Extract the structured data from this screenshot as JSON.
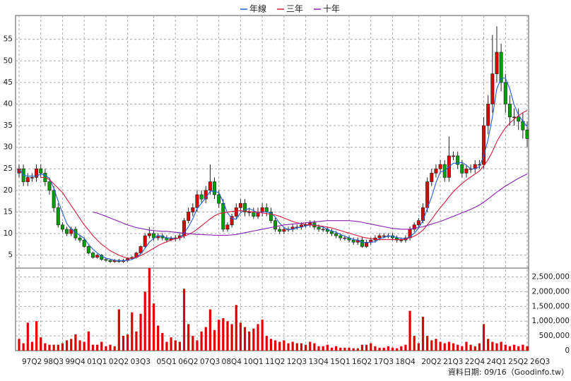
{
  "chart_data": [
    {
      "type": "candlestick",
      "categories": [
        "97Q2",
        null,
        null,
        null,
        null,
        "98Q3",
        null,
        null,
        null,
        null,
        "99Q4",
        null,
        null,
        null,
        null,
        "01Q1",
        null,
        null,
        null,
        null,
        "02Q2",
        null,
        null,
        null,
        null,
        "03Q3",
        null,
        null,
        null,
        null,
        null,
        "05Q1",
        null,
        null,
        null,
        null,
        "06Q2",
        null,
        null,
        null,
        null,
        "07Q3",
        null,
        null,
        null,
        null,
        "08Q4",
        null,
        null,
        null,
        null,
        "10Q1",
        null,
        null,
        null,
        null,
        "11Q2",
        null,
        null,
        null,
        null,
        "12Q3",
        null,
        null,
        null,
        null,
        "13Q4",
        null,
        null,
        null,
        null,
        "15Q1",
        null,
        null,
        null,
        null,
        "16Q2",
        null,
        null,
        null,
        null,
        "17Q3",
        null,
        null,
        null,
        null,
        "18Q4",
        null,
        null,
        null,
        null,
        null,
        "20Q2",
        null,
        null,
        null,
        null,
        "21Q3",
        null,
        null,
        null,
        null,
        "22Q4",
        null,
        null,
        null,
        null,
        "24Q1",
        null,
        null,
        null,
        null,
        "25Q2",
        null,
        null,
        null,
        null,
        "26Q3"
      ],
      "open": [
        24,
        25,
        22,
        23,
        23,
        25,
        24,
        22,
        20,
        16,
        12,
        11,
        10,
        11,
        9,
        8.5,
        7,
        5.5,
        4.5,
        5,
        4,
        3.8,
        3.5,
        3.8,
        3.5,
        3.8,
        4.2,
        4.5,
        5.5,
        7,
        9.5,
        10,
        9,
        9.5,
        9,
        8.5,
        8.8,
        9,
        9.5,
        13,
        15,
        16,
        19,
        18,
        20,
        22,
        19,
        17,
        11,
        12,
        14,
        16,
        17,
        15,
        15,
        14,
        15,
        16,
        15,
        13,
        11,
        10.5,
        11,
        11,
        11.5,
        11.5,
        12,
        12,
        12.5,
        11.5,
        11,
        11,
        10.5,
        10,
        9.5,
        9,
        9,
        8.5,
        8,
        8.5,
        7,
        8,
        8.5,
        9,
        9.5,
        9.5,
        9.5,
        9,
        8.5,
        8.5,
        9,
        11,
        12,
        13,
        16,
        22,
        24,
        25,
        26,
        23,
        28,
        28,
        26,
        24,
        25,
        25,
        26,
        26,
        35,
        40,
        47,
        52,
        45,
        40,
        37,
        37,
        36,
        34
      ],
      "high": [
        26,
        26,
        24,
        24,
        26,
        26,
        25,
        23,
        21,
        17,
        12.6,
        11.6,
        11.6,
        11.6,
        9.6,
        9.1,
        7.3,
        5.8,
        5.3,
        5.3,
        4.3,
        4.1,
        4.1,
        4.1,
        4.1,
        4.5,
        4.8,
        5.8,
        7.3,
        10.1,
        11.5,
        10.6,
        10.1,
        10.1,
        9.6,
        9.4,
        9.6,
        10.1,
        13.6,
        16,
        17,
        20,
        20,
        21,
        26,
        23,
        20,
        18,
        12.6,
        14.6,
        17,
        18,
        18,
        16,
        16,
        16,
        17,
        17,
        16,
        13.6,
        11.6,
        11.6,
        11.6,
        12.1,
        12.1,
        12.6,
        12.6,
        13.1,
        13.1,
        12.1,
        11.6,
        11.6,
        11.1,
        10.6,
        10.1,
        9.6,
        9.6,
        9.1,
        9.1,
        9.1,
        8.6,
        9.1,
        9.6,
        10.1,
        10.1,
        10.1,
        10.1,
        9.6,
        9.1,
        9.6,
        11.6,
        12.6,
        13.6,
        17,
        23,
        25,
        26,
        27,
        27,
        32.5,
        29,
        29,
        27,
        26,
        26,
        27,
        27,
        37,
        42,
        56,
        58,
        54,
        47,
        42,
        39,
        39,
        38,
        36
      ],
      "low": [
        23,
        21,
        21,
        22,
        22,
        23,
        21,
        19,
        15,
        11.4,
        10.4,
        9.4,
        9.4,
        8.4,
        7.9,
        6.7,
        5.2,
        4.2,
        4.2,
        3.7,
        3.5,
        3.2,
        3.2,
        3.2,
        3.2,
        3.5,
        3.9,
        4.2,
        5.2,
        6.7,
        8.9,
        8.4,
        8.4,
        8.4,
        7.9,
        8.2,
        8.2,
        8.4,
        8.9,
        12.4,
        14,
        15,
        17,
        17,
        19,
        18,
        16,
        10.4,
        10.4,
        11.4,
        13.4,
        15,
        14,
        14,
        13.4,
        13.4,
        14,
        14,
        12.4,
        10.4,
        9.9,
        9.9,
        10.4,
        10.4,
        10.9,
        10.9,
        11.4,
        11.4,
        10.9,
        10.4,
        10.4,
        9.9,
        9.4,
        8.9,
        8.4,
        8.4,
        7.9,
        7.4,
        7.4,
        6.7,
        6.7,
        7.4,
        7.9,
        8.4,
        8.9,
        8.9,
        8.4,
        7.9,
        7.9,
        7.9,
        8.4,
        10.4,
        11.4,
        12.4,
        15,
        21,
        23,
        24,
        22,
        22,
        27,
        25,
        23,
        23,
        24,
        24,
        25,
        25,
        33,
        38,
        45,
        43,
        38,
        35,
        35,
        34,
        32,
        30
      ],
      "close": [
        25,
        22,
        23,
        23,
        25,
        24,
        22,
        20,
        16,
        12,
        11,
        10,
        11,
        9,
        8.5,
        7,
        5.5,
        4.5,
        5,
        4,
        3.8,
        3.5,
        3.8,
        3.5,
        3.8,
        4.2,
        4.5,
        5.5,
        7,
        9.5,
        10,
        9,
        9.5,
        9,
        8.5,
        8.8,
        9,
        9.5,
        13,
        15,
        16,
        19,
        18,
        20,
        22,
        19,
        17,
        11,
        12,
        14,
        16,
        17,
        15,
        15,
        14,
        15,
        16,
        15,
        13,
        11,
        10.5,
        11,
        11,
        11.5,
        11.5,
        12,
        12,
        12.5,
        11.5,
        11,
        11,
        10.5,
        10,
        9.5,
        9,
        9,
        8.5,
        8,
        8.5,
        7,
        8,
        8.5,
        9,
        9.5,
        9.5,
        9.5,
        9,
        8.5,
        8.5,
        9,
        11,
        12,
        13,
        16,
        22,
        24,
        25,
        26,
        23,
        28,
        28,
        26,
        24,
        25,
        25,
        26,
        26,
        35,
        40,
        47,
        52,
        45,
        40,
        37,
        37,
        36,
        34,
        32
      ],
      "up_color": "#e00000",
      "down_color": "#00a000",
      "series": [
        {
          "name": "年線",
          "color": "#1f5fd8",
          "values": [
            25,
            23.5,
            23.3,
            23.3,
            23.3,
            23.8,
            23.5,
            22.8,
            20.5,
            17.5,
            14.8,
            12.3,
            11,
            10.3,
            9.6,
            8.9,
            7.5,
            6.4,
            5.5,
            4.8,
            4.3,
            4.1,
            3.8,
            3.7,
            3.7,
            3.8,
            4,
            4.5,
            5.3,
            6.6,
            8,
            8.9,
            9.5,
            9.4,
            9,
            9,
            8.8,
            9,
            10.1,
            11.6,
            13.4,
            15.8,
            17,
            18.3,
            19.8,
            19.8,
            19.5,
            17.3,
            14.8,
            13.5,
            13.3,
            14.8,
            15.5,
            15.8,
            15.3,
            14.8,
            15,
            15,
            14.8,
            13.8,
            12.4,
            11.4,
            10.9,
            11,
            11.3,
            11.5,
            11.8,
            12,
            12,
            11.8,
            11.5,
            11,
            10.6,
            10.3,
            9.8,
            9.4,
            9,
            8.6,
            8.5,
            8,
            7.9,
            8,
            8.1,
            8.8,
            9.1,
            9.4,
            9.4,
            9.1,
            8.9,
            8.8,
            9.3,
            10.1,
            11.3,
            13,
            15.8,
            18.5,
            21.8,
            24.3,
            24.5,
            25.5,
            26.3,
            26.3,
            26.5,
            25.8,
            25,
            25,
            25.5,
            28,
            31.8,
            37,
            43.5,
            46,
            46,
            43.5,
            39.8,
            37.5,
            36,
            34.8
          ]
        },
        {
          "name": "三年",
          "color": "#d81b3c",
          "values": [
            null,
            null,
            null,
            null,
            null,
            23,
            23,
            22.5,
            21.5,
            20.5,
            19.5,
            18,
            16.5,
            15,
            13.5,
            12,
            10.8,
            9.5,
            8.5,
            7.5,
            6.8,
            6,
            5.5,
            5,
            4.6,
            4.3,
            4.3,
            4.5,
            4.9,
            5.4,
            6,
            6.6,
            7.2,
            7.7,
            8.1,
            8.5,
            8.8,
            9,
            9.4,
            9.8,
            10.3,
            11,
            11.8,
            12.6,
            13.4,
            14.1,
            14.6,
            14.8,
            15,
            15.1,
            15.2,
            15.3,
            15.2,
            15.1,
            15,
            15,
            14.8,
            14.6,
            14.5,
            14.3,
            14,
            13.6,
            13.2,
            12.8,
            12.5,
            12.3,
            12.1,
            12,
            11.9,
            11.8,
            11.7,
            11.5,
            11.3,
            11,
            10.7,
            10.4,
            10.1,
            9.8,
            9.5,
            9.2,
            9,
            8.8,
            8.7,
            8.6,
            8.6,
            8.6,
            8.6,
            8.6,
            8.6,
            8.7,
            9,
            9.4,
            10,
            10.8,
            12,
            13.3,
            14.7,
            16,
            17.2,
            18.5,
            19.7,
            20.7,
            21.6,
            22.4,
            23.1,
            23.8,
            24.5,
            25.7,
            27.1,
            29,
            31.3,
            33,
            34.5,
            35.6,
            36.5,
            37.3,
            38,
            38.5
          ]
        },
        {
          "name": "十年",
          "color": "#8a1fb0",
          "values": [
            null,
            null,
            null,
            null,
            null,
            null,
            null,
            null,
            null,
            null,
            null,
            null,
            null,
            null,
            null,
            null,
            null,
            15,
            14.7,
            14.4,
            14,
            13.6,
            13.2,
            12.8,
            12.4,
            12,
            11.7,
            11.4,
            11.2,
            11,
            10.8,
            10.7,
            10.6,
            10.5,
            10.5,
            10.4,
            10.3,
            10.2,
            10.1,
            10,
            9.9,
            9.8,
            9.8,
            9.7,
            9.7,
            9.6,
            9.6,
            9.6,
            9.6,
            9.7,
            9.8,
            10,
            10.2,
            10.4,
            10.6,
            10.8,
            11,
            11.2,
            11.4,
            11.6,
            11.8,
            12,
            12.1,
            12.2,
            12.3,
            12.4,
            12.5,
            12.6,
            12.7,
            12.8,
            12.9,
            13,
            13,
            13,
            13,
            13,
            13,
            12.9,
            12.8,
            12.6,
            12.4,
            12.2,
            12,
            11.8,
            11.6,
            11.4,
            11.2,
            11.1,
            11,
            11,
            11,
            11.2,
            11.4,
            11.6,
            11.9,
            12.2,
            12.5,
            12.8,
            13.2,
            13.6,
            14,
            14.4,
            14.8,
            15.2,
            15.6,
            16.1,
            16.6,
            17.3,
            18,
            18.8,
            19.6,
            20.3,
            21,
            21.6,
            22.2,
            22.8,
            23.3,
            23.8
          ]
        }
      ],
      "ylim": [
        2,
        60.5
      ],
      "yticks": [
        5,
        10,
        15,
        20,
        25,
        30,
        35,
        40,
        45,
        50,
        55
      ],
      "grid": true
    },
    {
      "type": "bar",
      "color": "#e00000",
      "values": [
        400000,
        250000,
        950000,
        300000,
        1000000,
        450000,
        250000,
        200000,
        200000,
        200000,
        250000,
        350000,
        400000,
        550000,
        350000,
        300000,
        650000,
        200000,
        200000,
        300000,
        150000,
        200000,
        150000,
        1400000,
        500000,
        550000,
        1300000,
        650000,
        1250000,
        2000000,
        2800000,
        1600000,
        850000,
        600000,
        300000,
        450000,
        350000,
        300000,
        2100000,
        900000,
        500000,
        350000,
        650000,
        800000,
        1400000,
        700000,
        1050000,
        1100000,
        1000000,
        900000,
        1550000,
        950000,
        800000,
        650000,
        750000,
        900000,
        1050000,
        500000,
        400000,
        350000,
        300000,
        350000,
        250000,
        300000,
        250000,
        250000,
        200000,
        300000,
        250000,
        150000,
        150000,
        200000,
        100000,
        150000,
        100000,
        100000,
        100000,
        80000,
        80000,
        200000,
        200000,
        250000,
        150000,
        100000,
        100000,
        150000,
        100000,
        80000,
        150000,
        200000,
        1350000,
        500000,
        250000,
        1150000,
        500000,
        350000,
        400000,
        300000,
        250000,
        300000,
        250000,
        200000,
        150000,
        300000,
        200000,
        150000,
        250000,
        900000,
        400000,
        300000,
        250000,
        300000,
        200000,
        150000,
        200000,
        150000,
        200000,
        150000
      ],
      "ylim": [
        0,
        2800000
      ],
      "yticks": [
        0,
        {
          "value": 500000,
          "label": "500,000"
        },
        {
          "value": 1000000,
          "label": "1,000,000"
        },
        {
          "value": 1500000,
          "label": "1,500,000"
        },
        {
          "value": 2000000,
          "label": "2,000,000"
        },
        {
          "value": 2500000,
          "label": "2,500,000"
        }
      ],
      "grid": true
    }
  ],
  "footer": "資料日期: 09/16（Goodinfo.tw）"
}
